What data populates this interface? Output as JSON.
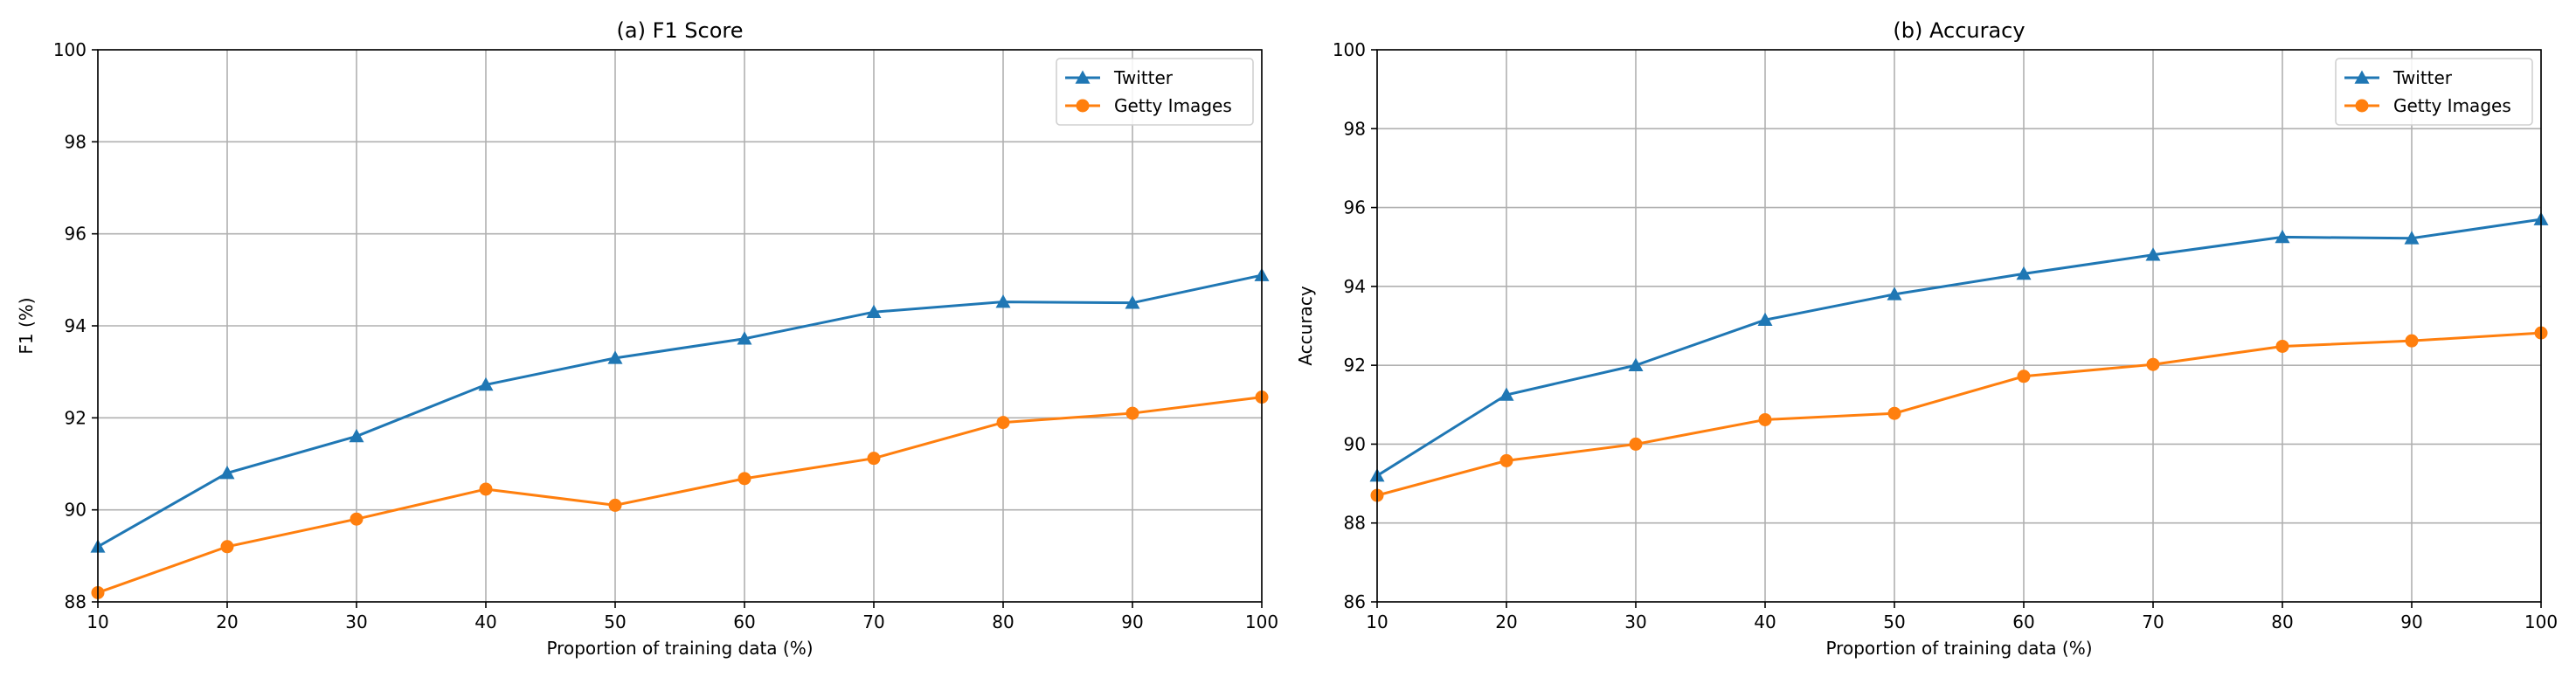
{
  "chart_data": [
    {
      "type": "line",
      "title": "(a) F1 Score",
      "xlabel": "Proportion of training data (%)",
      "ylabel": "F1 (%)",
      "x": [
        10,
        20,
        30,
        40,
        50,
        60,
        70,
        80,
        90,
        100
      ],
      "xlim": [
        10,
        100
      ],
      "ylim": [
        88,
        100
      ],
      "xticks": [
        "10",
        "20",
        "30",
        "40",
        "50",
        "60",
        "70",
        "80",
        "90",
        "100"
      ],
      "yticks": [
        "88",
        "90",
        "92",
        "94",
        "96",
        "98",
        "100"
      ],
      "grid": true,
      "legend_position": "top-right",
      "series": [
        {
          "name": "Twitter",
          "color": "#1f77b4",
          "marker": "triangle",
          "values": [
            89.2,
            90.8,
            91.6,
            92.72,
            93.3,
            93.72,
            94.3,
            94.52,
            94.5,
            95.1
          ]
        },
        {
          "name": "Getty Images",
          "color": "#ff7f0e",
          "marker": "circle",
          "values": [
            88.2,
            89.2,
            89.8,
            90.45,
            90.1,
            90.68,
            91.12,
            91.9,
            92.1,
            92.45
          ]
        }
      ]
    },
    {
      "type": "line",
      "title": "(b) Accuracy",
      "xlabel": "Proportion of training data (%)",
      "ylabel": "Accuracy",
      "x": [
        10,
        20,
        30,
        40,
        50,
        60,
        70,
        80,
        90,
        100
      ],
      "xlim": [
        10,
        100
      ],
      "ylim": [
        86,
        100
      ],
      "xticks": [
        "10",
        "20",
        "30",
        "40",
        "50",
        "60",
        "70",
        "80",
        "90",
        "100"
      ],
      "yticks": [
        "86",
        "88",
        "90",
        "92",
        "94",
        "96",
        "98",
        "100"
      ],
      "grid": true,
      "legend_position": "top-right",
      "series": [
        {
          "name": "Twitter",
          "color": "#1f77b4",
          "marker": "triangle",
          "values": [
            89.2,
            91.25,
            92.0,
            93.15,
            93.8,
            94.32,
            94.8,
            95.25,
            95.22,
            95.7
          ]
        },
        {
          "name": "Getty Images",
          "color": "#ff7f0e",
          "marker": "circle",
          "values": [
            88.7,
            89.58,
            90.0,
            90.62,
            90.78,
            91.72,
            92.02,
            92.48,
            92.62,
            92.82
          ]
        }
      ]
    }
  ]
}
